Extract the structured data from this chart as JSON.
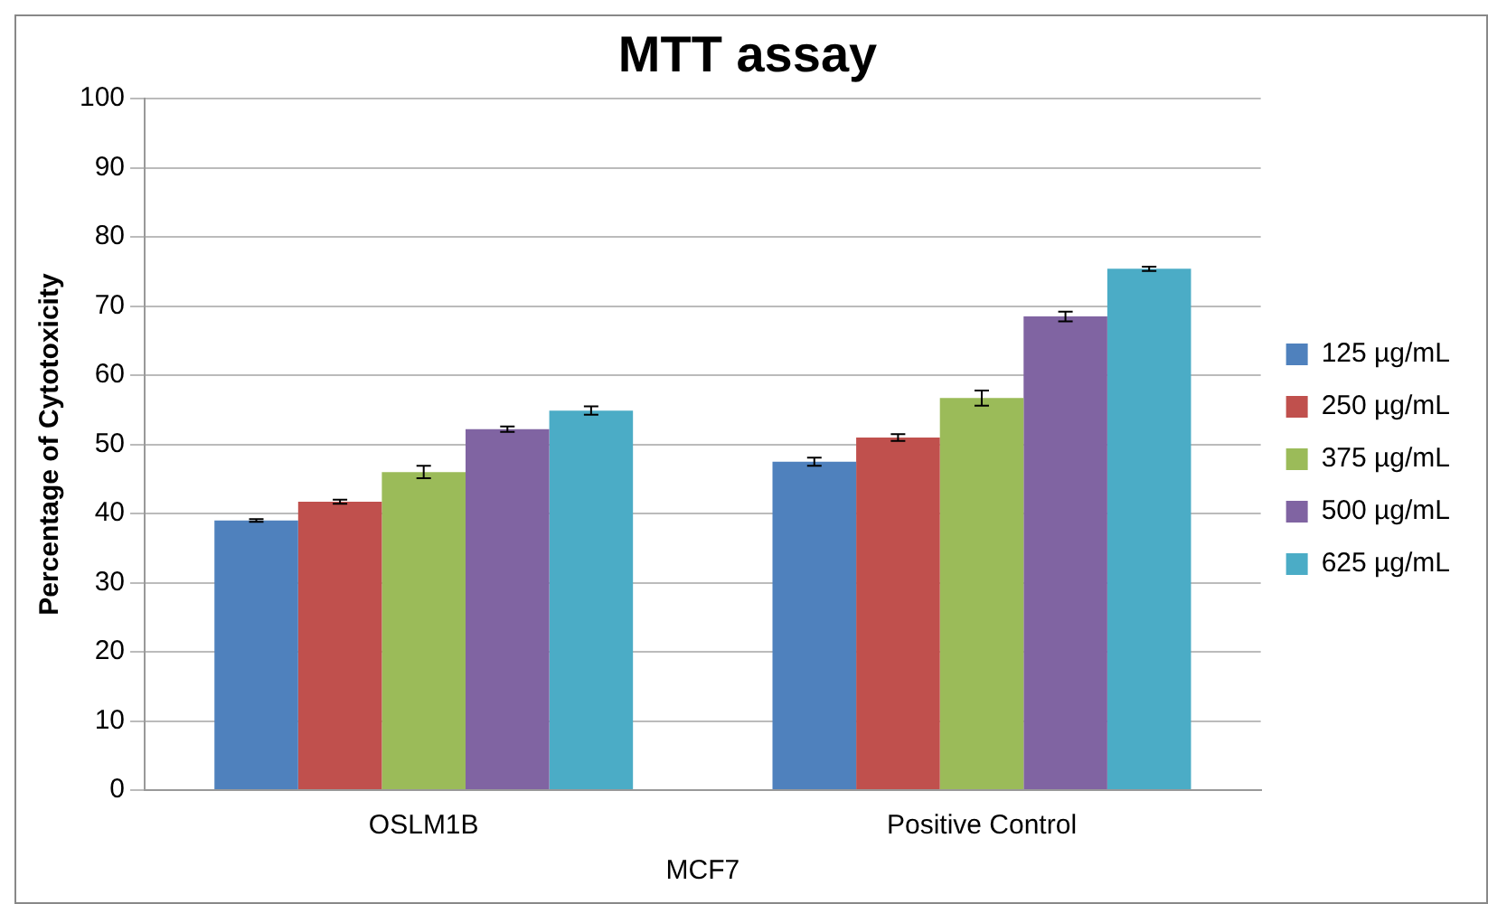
{
  "chart_data": {
    "type": "bar",
    "title": "MTT assay",
    "xlabel": "MCF7",
    "ylabel": "Percentage of Cytotoxicity",
    "categories": [
      "OSLM1B",
      "Positive Control"
    ],
    "series": [
      {
        "name": "125 µg/mL",
        "color": "#4f81bd",
        "values": [
          39,
          47.5
        ],
        "errors": [
          0.2,
          0.6
        ]
      },
      {
        "name": "250 µg/mL",
        "color": "#c0504d",
        "values": [
          41.7,
          51
        ],
        "errors": [
          0.3,
          0.5
        ]
      },
      {
        "name": "375 µg/mL",
        "color": "#9bbb59",
        "values": [
          46,
          56.7
        ],
        "errors": [
          0.9,
          1.1
        ]
      },
      {
        "name": "500 µg/mL",
        "color": "#8064a2",
        "values": [
          52.2,
          68.5
        ],
        "errors": [
          0.4,
          0.7
        ]
      },
      {
        "name": "625 µg/mL",
        "color": "#4bacc6",
        "values": [
          54.9,
          75.4
        ],
        "errors": [
          0.6,
          0.3
        ]
      }
    ],
    "ylim": [
      0,
      100
    ],
    "yticks": [
      0,
      10,
      20,
      30,
      40,
      50,
      60,
      70,
      80,
      90,
      100
    ],
    "grid": "y",
    "legend": "right"
  }
}
